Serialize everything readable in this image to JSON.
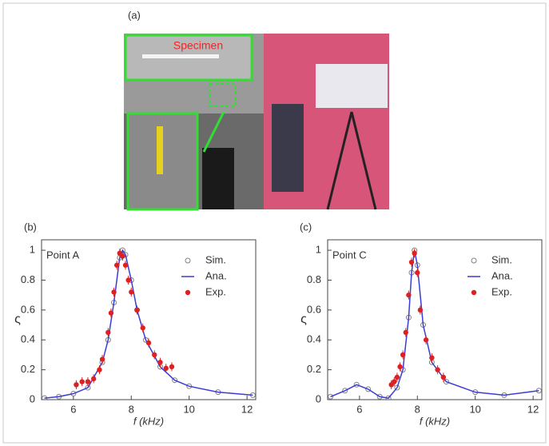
{
  "figure": {
    "label": "(a)",
    "photo_text": "Specimen"
  },
  "chart_data": [
    {
      "type": "line",
      "label": "(b)",
      "annotation": "Point A",
      "x_label": "f (kHz)",
      "y_label": "ς",
      "xlim": [
        4.9,
        12.3
      ],
      "xticks": [
        6,
        8,
        10,
        12
      ],
      "ylim": [
        0,
        1.07
      ],
      "yticks": [
        0,
        0.2,
        0.4,
        0.6,
        0.8,
        1
      ],
      "legend": "top-right",
      "series": [
        {
          "name": "Sim.",
          "color": "#808080",
          "marker": "open-circle",
          "x": [
            5,
            5.5,
            6,
            6.5,
            7,
            7.2,
            7.4,
            7.6,
            7.7,
            7.8,
            8,
            8.2,
            8.5,
            9,
            9.5,
            10,
            11,
            12.2
          ],
          "values": [
            0.01,
            0.02,
            0.04,
            0.08,
            0.25,
            0.4,
            0.65,
            0.95,
            1,
            0.97,
            0.8,
            0.6,
            0.4,
            0.22,
            0.13,
            0.09,
            0.05,
            0.03
          ]
        },
        {
          "name": "Ana.",
          "color": "#3b3bd6",
          "marker": "line",
          "x": [
            5,
            5.5,
            6,
            6.5,
            7,
            7.2,
            7.4,
            7.6,
            7.7,
            7.8,
            8,
            8.2,
            8.5,
            9,
            9.5,
            10,
            11,
            12.2
          ],
          "values": [
            0.01,
            0.02,
            0.04,
            0.08,
            0.25,
            0.4,
            0.65,
            0.95,
            1,
            0.97,
            0.8,
            0.6,
            0.4,
            0.22,
            0.13,
            0.09,
            0.05,
            0.03
          ]
        },
        {
          "name": "Exp.",
          "color": "#e02020",
          "marker": "dot-error",
          "x": [
            6.1,
            6.3,
            6.5,
            6.7,
            6.9,
            7.0,
            7.2,
            7.3,
            7.4,
            7.5,
            7.6,
            7.7,
            7.8,
            7.9,
            8.0,
            8.2,
            8.4,
            8.6,
            8.8,
            9.0,
            9.2,
            9.4
          ],
          "values": [
            0.1,
            0.12,
            0.12,
            0.14,
            0.2,
            0.27,
            0.45,
            0.58,
            0.72,
            0.9,
            0.98,
            0.96,
            0.9,
            0.8,
            0.72,
            0.6,
            0.48,
            0.38,
            0.3,
            0.25,
            0.21,
            0.22
          ],
          "errors": [
            0.03,
            0.03,
            0.03,
            0.03,
            0.03,
            0.03,
            0.03,
            0.03,
            0.03,
            0.03,
            0.03,
            0.03,
            0.03,
            0.03,
            0.03,
            0.03,
            0.03,
            0.03,
            0.03,
            0.03,
            0.03,
            0.03
          ]
        }
      ]
    },
    {
      "type": "line",
      "label": "(c)",
      "annotation": "Point C",
      "x_label": "f (kHz)",
      "y_label": "ς",
      "xlim": [
        4.9,
        12.3
      ],
      "xticks": [
        6,
        8,
        10,
        12
      ],
      "ylim": [
        0,
        1.07
      ],
      "yticks": [
        0,
        0.2,
        0.4,
        0.6,
        0.8,
        1
      ],
      "legend": "top-right",
      "series": [
        {
          "name": "Sim.",
          "color": "#808080",
          "marker": "open-circle",
          "x": [
            5,
            5.5,
            5.9,
            6.3,
            6.7,
            7.0,
            7.3,
            7.5,
            7.7,
            7.8,
            7.9,
            8.0,
            8.2,
            8.5,
            9,
            10,
            11,
            12.2
          ],
          "values": [
            0.02,
            0.06,
            0.1,
            0.07,
            0.02,
            0.01,
            0.08,
            0.2,
            0.55,
            0.85,
            1,
            0.9,
            0.5,
            0.25,
            0.12,
            0.05,
            0.03,
            0.06
          ]
        },
        {
          "name": "Ana.",
          "color": "#3b3bd6",
          "marker": "line",
          "x": [
            5,
            5.5,
            5.9,
            6.3,
            6.7,
            7.0,
            7.3,
            7.5,
            7.7,
            7.8,
            7.9,
            8.0,
            8.2,
            8.5,
            9,
            10,
            11,
            12.2
          ],
          "values": [
            0.02,
            0.06,
            0.1,
            0.07,
            0.02,
            0.01,
            0.08,
            0.2,
            0.55,
            0.85,
            1,
            0.9,
            0.5,
            0.25,
            0.12,
            0.05,
            0.03,
            0.06
          ]
        },
        {
          "name": "Exp.",
          "color": "#e02020",
          "marker": "dot-error",
          "x": [
            7.1,
            7.2,
            7.3,
            7.4,
            7.5,
            7.6,
            7.7,
            7.8,
            7.9,
            8.0,
            8.1,
            8.3,
            8.5,
            8.7,
            8.9
          ],
          "values": [
            0.1,
            0.12,
            0.15,
            0.22,
            0.3,
            0.45,
            0.7,
            0.92,
            0.98,
            0.85,
            0.6,
            0.4,
            0.28,
            0.2,
            0.15
          ],
          "errors": [
            0.03,
            0.03,
            0.03,
            0.03,
            0.03,
            0.03,
            0.03,
            0.03,
            0.03,
            0.03,
            0.03,
            0.03,
            0.03,
            0.03,
            0.03
          ]
        }
      ]
    }
  ]
}
